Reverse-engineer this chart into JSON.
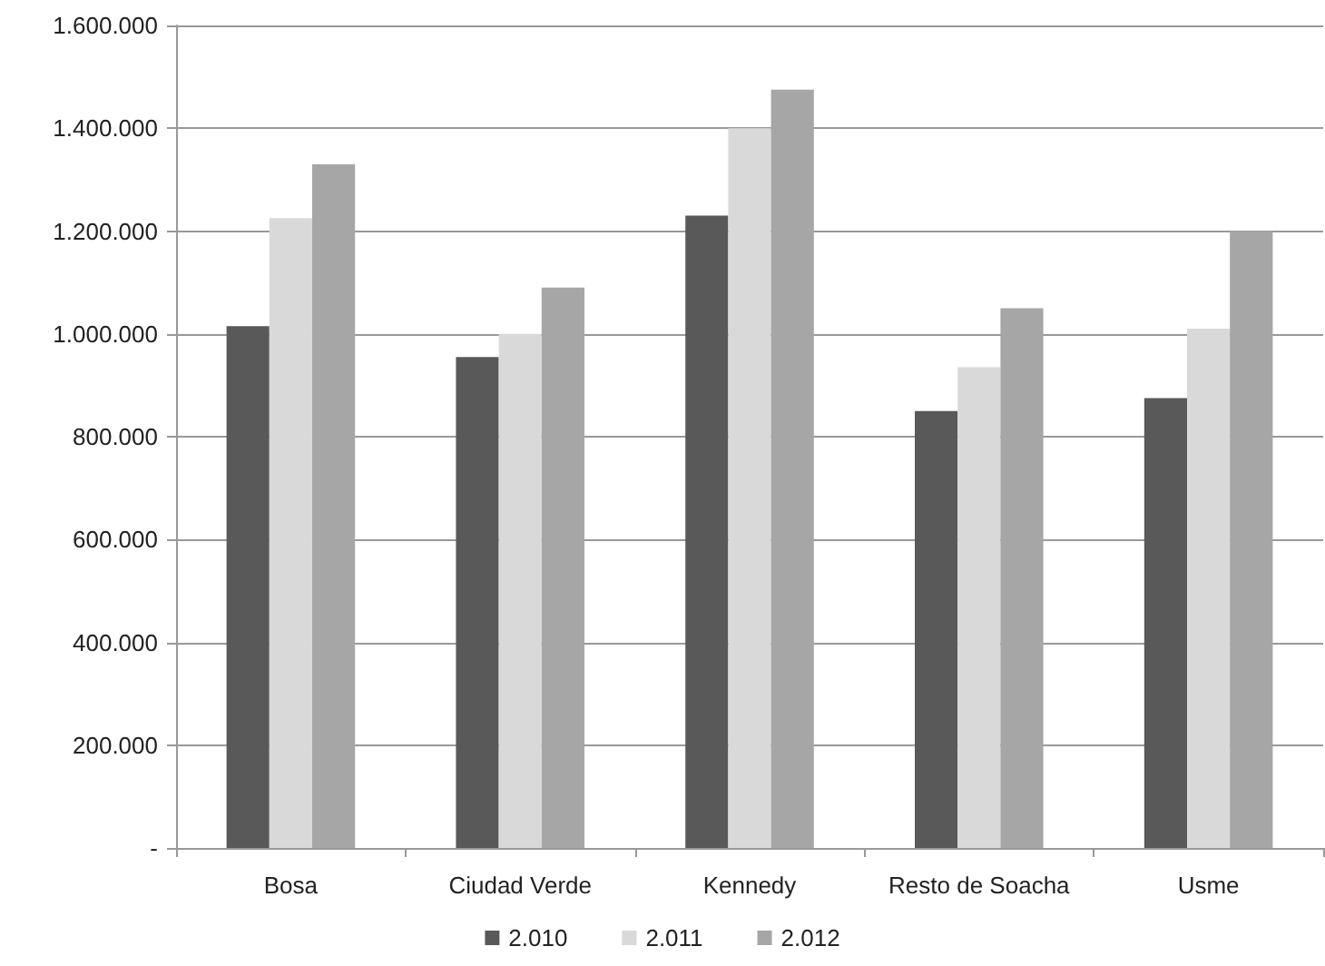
{
  "chart_data": {
    "type": "bar",
    "categories": [
      "Bosa",
      "Ciudad Verde",
      "Kennedy",
      "Resto de Soacha",
      "Usme"
    ],
    "series": [
      {
        "name": "2.010",
        "color": "#595959",
        "values": [
          1015000,
          955000,
          1230000,
          850000,
          875000
        ]
      },
      {
        "name": "2.011",
        "color": "#d9d9d9",
        "values": [
          1225000,
          1000000,
          1400000,
          935000,
          1010000
        ]
      },
      {
        "name": "2.012",
        "color": "#a6a6a6",
        "values": [
          1330000,
          1090000,
          1475000,
          1050000,
          1200000
        ]
      }
    ],
    "ylim": [
      0,
      1600000
    ],
    "yticks": [
      {
        "value": 0,
        "label": "-"
      },
      {
        "value": 200000,
        "label": "200.000"
      },
      {
        "value": 400000,
        "label": "400.000"
      },
      {
        "value": 600000,
        "label": "600.000"
      },
      {
        "value": 800000,
        "label": "800.000"
      },
      {
        "value": 1000000,
        "label": "1.000.000"
      },
      {
        "value": 1200000,
        "label": "1.200.000"
      },
      {
        "value": 1400000,
        "label": "1.400.000"
      },
      {
        "value": 1600000,
        "label": "1.600.000"
      }
    ],
    "grid": "y",
    "legend": "bottom"
  }
}
